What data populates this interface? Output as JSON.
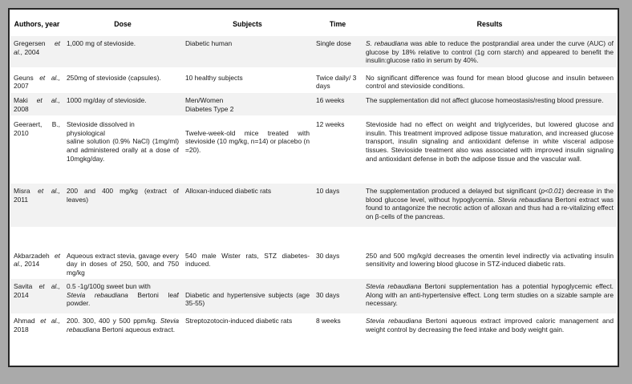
{
  "colors": {
    "outer_margin": "#aaaaaa",
    "frame_border": "#262626",
    "page_background": "#ffffff",
    "shaded_row": "#f2f2f2",
    "text": "#1a1a1a"
  },
  "table": {
    "headers": [
      "Authors, year",
      "Dose",
      "Subjects",
      "Time",
      "Results"
    ],
    "rows": [
      {
        "authors": [
          {
            "t": "Gregersen "
          },
          {
            "t": "et al.,",
            "i": true
          },
          {
            "t": " 2004"
          }
        ],
        "dose": [
          {
            "t": "1,000 mg of stevioside."
          }
        ],
        "subjects": [
          {
            "t": "Diabetic human"
          }
        ],
        "time": "Single dose",
        "results": [
          {
            "t": "S. rebaudiana",
            "i": true
          },
          {
            "t": " was able to reduce the postprandial area under the curve (AUC) of glucose by 18% relative to control (1g corn starch) and appeared to benefit the insulin:glucose ratio in serum by 40%."
          }
        ]
      },
      {
        "authors": [
          {
            "t": "Geuns "
          },
          {
            "t": "et al.,",
            "i": true
          },
          {
            "t": " 2007"
          }
        ],
        "dose": [
          {
            "t": "250mg of stevioside (capsules)."
          }
        ],
        "subjects": [
          {
            "t": "10 healthy subjects"
          }
        ],
        "time": "Twice daily/ 3 days",
        "results": [
          {
            "t": "No significant difference was found for mean blood glucose and insulin between control and stevioside conditions."
          }
        ]
      },
      {
        "authors": [
          {
            "t": "Maki "
          },
          {
            "t": "et al.,",
            "i": true
          },
          {
            "t": " 2008"
          }
        ],
        "dose": [
          {
            "t": "1000 mg/day of stevioside."
          }
        ],
        "subjects": [
          {
            "t": "Men/Women"
          },
          {
            "br": true
          },
          {
            "t": "Diabetes Type 2"
          }
        ],
        "time": "16 weeks",
        "results": [
          {
            "t": "The supplementation did not affect glucose homeostasis/resting blood pressure."
          }
        ]
      },
      {
        "authors": [
          {
            "t": "Geeraert, B., 2010"
          }
        ],
        "dose": [
          {
            "t": "Stevioside dissolved in"
          },
          {
            "br": true
          },
          {
            "t": "physiological"
          },
          {
            "br": true
          },
          {
            "t": "saline solution (0.9% NaCl) (1mg/ml) and administered orally at a dose of 10mgkg/day."
          }
        ],
        "subjects": [
          {
            "t": "Twelve-week-old mice treated with stevioside (10 mg/kg, n=14) or placebo (n =20)."
          }
        ],
        "time": "12 weeks",
        "results": [
          {
            "t": "Stevioside had no effect on weight and triglycerides, but lowered glucose and insulin. This treatment improved adipose tissue maturation, and increased glucose transport, insulin signaling and antioxidant defense in white visceral adipose tissues. Stevioside treatment also was associated with improved insulin signaling and antioxidant defense in both the adipose tissue and the vascular wall."
          }
        ]
      },
      {
        "authors": [
          {
            "t": "Misra "
          },
          {
            "t": "et al.,",
            "i": true
          },
          {
            "t": " 2011"
          }
        ],
        "dose": [
          {
            "t": "200 and 400 mg/kg (extract of leaves)"
          }
        ],
        "subjects": [
          {
            "t": "Alloxan-induced diabetic rats"
          }
        ],
        "time": "10 days",
        "results": [
          {
            "t": "The supplementation produced a delayed but significant ("
          },
          {
            "t": "p<0.01",
            "i": true
          },
          {
            "t": ") decrease in the blood glucose level, without hypoglycemia. "
          },
          {
            "t": "Stevia rebaudiana",
            "i": true
          },
          {
            "t": " Bertoni extract was found to antagonize the necrotic action of alloxan and thus had a re-vitalizing effect on β-cells of the pancreas."
          }
        ]
      },
      {
        "authors": [
          {
            "t": "Akbarzadeh "
          },
          {
            "t": "et al.,",
            "i": true
          },
          {
            "t": " 2014"
          }
        ],
        "dose": [
          {
            "t": "Aqueous extract stevia, gavage every day in doses of 250, 500, and 750 mg/kg"
          }
        ],
        "subjects": [
          {
            "t": "540 male Wister rats, STZ diabetes-induced."
          }
        ],
        "time": "30 days",
        "results": [
          {
            "t": "250 and 500 mg/kg/d decreases the omentin level indirectly via activating insulin sensitivity and lowering blood glucose in STZ-induced diabetic rats."
          }
        ]
      },
      {
        "authors": [
          {
            "t": "Savita "
          },
          {
            "t": "et al.,",
            "i": true
          },
          {
            "t": " 2014"
          }
        ],
        "dose": [
          {
            "t": "0.5 -1g/100g sweet bun with"
          },
          {
            "br": true
          },
          {
            "t": "Stevia rebaudiana",
            "i": true
          },
          {
            "t": " Bertoni leaf powder."
          }
        ],
        "subjects": [
          {
            "t": "Diabetic and hypertensive subjects (age 35-55)"
          }
        ],
        "time": "30 days",
        "results": [
          {
            "t": "Stevia rebaudiana",
            "i": true
          },
          {
            "t": " Bertoni supplementation has a potential hypoglycemic effect. Along with an anti-hypertensive effect. Long term studies on a sizable sample are necessary."
          }
        ]
      },
      {
        "authors": [
          {
            "t": "Ahmad "
          },
          {
            "t": "et al.,",
            "i": true
          },
          {
            "t": " 2018"
          }
        ],
        "dose": [
          {
            "t": "200. 300, 400 y 500 ppm/kg. "
          },
          {
            "t": "Stevia rebaudiana",
            "i": true
          },
          {
            "t": " Bertoni aqueous extract."
          }
        ],
        "subjects": [
          {
            "t": "Streptozotocin-induced diabetic rats"
          }
        ],
        "time": "8 weeks",
        "results": [
          {
            "t": "Stevia rebaudiana",
            "i": true
          },
          {
            "t": " Bertoni aqueous extract improved caloric management and weight control by decreasing the feed intake and body weight gain."
          }
        ]
      }
    ]
  }
}
